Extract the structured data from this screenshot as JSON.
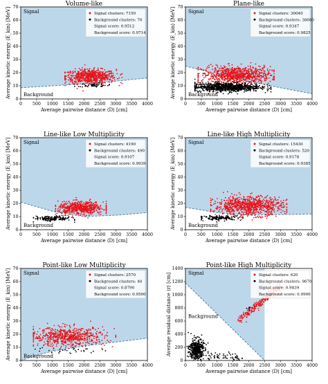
{
  "figure": {
    "shared": {
      "xlabel": "Average pairwise distance ⟨D⟩ [cm]",
      "ylabel_energy": "Average kinetic energy ⟨E_kin⟩ [MeV]",
      "ylabel_residual": "Average residual distance ⟨r⟩ [cm]",
      "signal_label": "Signal",
      "background_label": "Background"
    },
    "colors": {
      "signal_region": "#bdd7ea",
      "background_region": "#ffffff",
      "boundary": "#4f7fa6",
      "signal_points": "#e8141a",
      "background_points": "#000000"
    }
  },
  "chart_data": [
    {
      "type": "scatter",
      "title": "Volume-like",
      "xlabel": "Average pairwise distance ⟨D⟩ [cm]",
      "ylabel": "Average kinetic energy ⟨E_kin⟩ [MeV]",
      "xlim": [
        0,
        4000
      ],
      "ylim": [
        0,
        70
      ],
      "xticks": [
        0,
        500,
        1000,
        1500,
        2000,
        2500,
        3000,
        3500,
        4000
      ],
      "yticks": [
        0,
        10,
        20,
        30,
        40,
        50,
        60,
        70
      ],
      "boundary": {
        "x": [
          0,
          1000,
          2000,
          3000,
          4000
        ],
        "y": [
          8.5,
          10,
          11.5,
          13.5,
          16
        ]
      },
      "signal_side": "above",
      "legend": [
        "Signal clusters: 7150",
        "Background clusters: 70",
        "Signal score: 0.9512",
        "Background score: 0.9714"
      ],
      "series": [
        {
          "name": "Signal clusters",
          "x_range": [
            1400,
            3200
          ],
          "x_center": 2200,
          "y_center": 17,
          "y_spread": 4.5,
          "count": 700
        },
        {
          "name": "Background clusters",
          "x_range": [
            1700,
            2800
          ],
          "x_center": 2300,
          "y_center": 10.5,
          "y_spread": 1.2,
          "count": 60
        }
      ]
    },
    {
      "type": "scatter",
      "title": "Plane-like",
      "xlabel": "Average pairwise distance ⟨D⟩ [cm]",
      "ylabel": "Average kinetic energy ⟨E_kin⟩ [MeV]",
      "xlim": [
        0,
        4000
      ],
      "ylim": [
        0,
        70
      ],
      "xticks": [
        0,
        500,
        1000,
        1500,
        2000,
        2500,
        3000,
        3500,
        4000
      ],
      "yticks": [
        0,
        10,
        20,
        30,
        40,
        50,
        60,
        70
      ],
      "boundary": {
        "x": [
          0,
          1000,
          2000,
          3000,
          4000
        ],
        "y": [
          25,
          19,
          13.5,
          8.5,
          4
        ]
      },
      "signal_side": "above",
      "legend": [
        "Signal clusters: 30040",
        "Background clusters: 38680",
        "Signal score: 0.9347",
        "Background score: 0.9825"
      ],
      "series": [
        {
          "name": "Signal clusters",
          "x_range": [
            400,
            2800
          ],
          "x_center": 1600,
          "y_center": 18,
          "y_spread": 5.5,
          "count": 900
        },
        {
          "name": "Background clusters",
          "x_range": [
            300,
            2700
          ],
          "x_center": 1300,
          "y_center": 9,
          "y_spread": 2.8,
          "count": 900
        }
      ]
    },
    {
      "type": "scatter",
      "title": "Line-like Low Multiplicity",
      "xlabel": "Average pairwise distance ⟨D⟩ [cm]",
      "ylabel": "Average kinetic energy ⟨E_kin⟩ [MeV]",
      "xlim": [
        0,
        4000
      ],
      "ylim": [
        0,
        70
      ],
      "xticks": [
        0,
        500,
        1000,
        1500,
        2000,
        2500,
        3000,
        3500,
        4000
      ],
      "yticks": [
        0,
        10,
        20,
        30,
        40,
        50,
        60,
        70
      ],
      "boundary": {
        "x": [
          0,
          1000,
          2000,
          3000,
          4000
        ],
        "y": [
          21,
          14,
          10,
          11,
          13
        ]
      },
      "signal_side": "above",
      "legend": [
        "Signal clusters: 4190",
        "Background clusters: 490",
        "Signal score: 0.9107",
        "Background score: 0.9939"
      ],
      "series": [
        {
          "name": "Signal clusters",
          "x_range": [
            1100,
            2700
          ],
          "x_center": 1900,
          "y_center": 16.5,
          "y_spread": 4,
          "count": 600
        },
        {
          "name": "Background clusters",
          "x_range": [
            400,
            1700
          ],
          "x_center": 1000,
          "y_center": 8.5,
          "y_spread": 1.6,
          "count": 160
        }
      ]
    },
    {
      "type": "scatter",
      "title": "Line-like High Multiplicity",
      "xlabel": "Average pairwise distance ⟨D⟩ [cm]",
      "ylabel": "Average kinetic energy ⟨E_kin⟩ [MeV]",
      "xlim": [
        0,
        4000
      ],
      "ylim": [
        0,
        70
      ],
      "xticks": [
        0,
        500,
        1000,
        1500,
        2000,
        2500,
        3000,
        3500,
        4000
      ],
      "yticks": [
        0,
        10,
        20,
        30,
        40,
        50,
        60,
        70
      ],
      "boundary": {
        "x": [
          0,
          1000,
          2000,
          3000,
          4000
        ],
        "y": [
          17,
          13,
          11,
          11.5,
          12
        ]
      },
      "signal_side": "above",
      "legend": [
        "Signal clusters: 15430",
        "Background clusters: 520",
        "Signal score: 0.9178",
        "Background score: 0.9385"
      ],
      "series": [
        {
          "name": "Signal clusters",
          "x_range": [
            800,
            3200
          ],
          "x_center": 2000,
          "y_center": 18,
          "y_spread": 6,
          "count": 900
        },
        {
          "name": "Background clusters",
          "x_range": [
            500,
            2000
          ],
          "x_center": 1100,
          "y_center": 9,
          "y_spread": 1.5,
          "count": 140
        }
      ]
    },
    {
      "type": "scatter",
      "title": "Point-like Low Multiplicity",
      "xlabel": "Average pairwise distance ⟨D⟩ [cm]",
      "ylabel": "Average kinetic energy ⟨E_kin⟩ [MeV]",
      "xlim": [
        0,
        4000
      ],
      "ylim": [
        0,
        70
      ],
      "xticks": [
        0,
        500,
        1000,
        1500,
        2000,
        2500,
        3000,
        3500,
        4000
      ],
      "yticks": [
        0,
        10,
        20,
        30,
        40,
        50,
        60,
        70
      ],
      "boundary": {
        "x": [
          0,
          500,
          1000,
          2000,
          3000,
          4000
        ],
        "y": [
          0,
          4,
          7,
          11,
          14,
          17
        ]
      },
      "signal_side": "above",
      "legend": [
        "Signal clusters: 2570",
        "Background clusters: 40",
        "Signal score: 0.8790",
        "Background score: 0.9500"
      ],
      "series": [
        {
          "name": "Signal clusters",
          "x_range": [
            400,
            3000
          ],
          "x_center": 1500,
          "y_center": 18,
          "y_spread": 6,
          "count": 650
        },
        {
          "name": "Background clusters",
          "x_range": [
            400,
            2800
          ],
          "x_center": 1500,
          "y_center": 8,
          "y_spread": 2,
          "count": 30
        }
      ]
    },
    {
      "type": "scatter",
      "title": "Point-like High Multiplicity",
      "xlabel": "Average pairwise distance ⟨D⟩ [cm]",
      "ylabel": "Average residual distance ⟨r⟩ [cm]",
      "xlim": [
        0,
        4000
      ],
      "ylim": [
        0,
        1400
      ],
      "xticks": [
        0,
        500,
        1000,
        1500,
        2000,
        2500,
        3000,
        3500,
        4000
      ],
      "yticks": [
        0,
        200,
        400,
        600,
        800,
        1000,
        1200,
        1400
      ],
      "boundary": {
        "x": [
          0,
          2500
        ],
        "y": [
          1180,
          0
        ]
      },
      "signal_side": "above",
      "legend": [
        "Signal clusters: 620",
        "Background clusters: 9670",
        "Signal score: 0.9839",
        "Background score: 0.9990"
      ],
      "series": [
        {
          "name": "Signal clusters",
          "type": "band",
          "x_start": 1700,
          "y_start": 620,
          "x_end": 3000,
          "y_end": 1130,
          "spread": 35,
          "count": 260
        },
        {
          "name": "Background clusters",
          "type": "blob",
          "x_center": 350,
          "y_center": 170,
          "x_spread": 220,
          "y_spread": 80,
          "count": 450
        },
        {
          "name": "Background clusters",
          "type": "tail",
          "x_start": 700,
          "y_start": 80,
          "x_end": 1800,
          "y_end": 20,
          "count": 60
        },
        {
          "name": "Background clusters",
          "type": "cluster",
          "x_center": 2000,
          "y_center": 800,
          "count": 6
        }
      ]
    }
  ]
}
